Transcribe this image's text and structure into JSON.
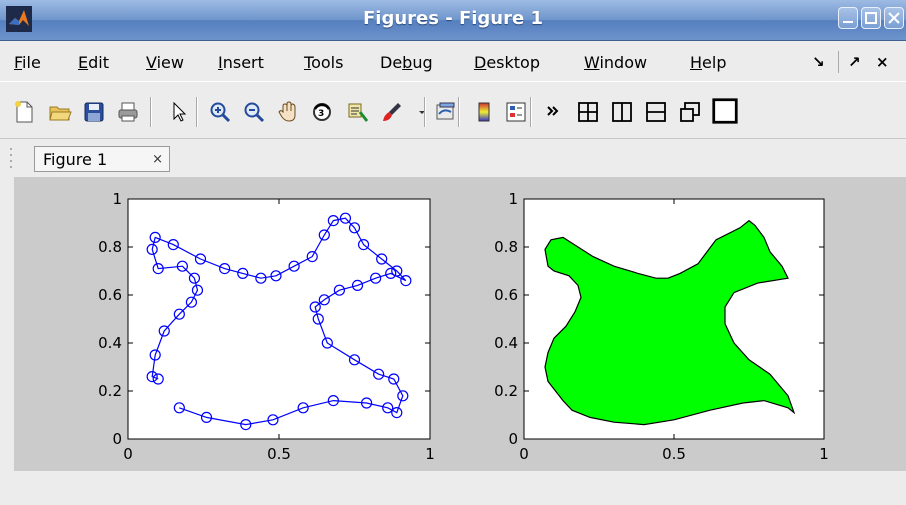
{
  "window": {
    "title": "Figures - Figure 1"
  },
  "menu": {
    "items": [
      {
        "label": "File",
        "u": "F",
        "rest": "ile"
      },
      {
        "label": "Edit",
        "u": "E",
        "rest": "dit"
      },
      {
        "label": "View",
        "u": "V",
        "rest": "iew"
      },
      {
        "label": "Insert",
        "u": "I",
        "rest": "nsert"
      },
      {
        "label": "Tools",
        "u": "T",
        "rest": "ools"
      },
      {
        "label": "Debug",
        "pre": "De",
        "u": "b",
        "rest": "ug"
      },
      {
        "label": "Desktop",
        "u": "D",
        "rest": "esktop"
      },
      {
        "label": "Window",
        "u": "W",
        "rest": "indow"
      },
      {
        "label": "Help",
        "u": "H",
        "rest": "elp"
      }
    ],
    "right_glyphs": [
      "↘",
      "↗",
      "×"
    ]
  },
  "toolbar": {
    "icons": [
      "new-figure-icon",
      "open-file-icon",
      "save-icon",
      "print-icon",
      "pointer-icon",
      "zoom-in-icon",
      "zoom-out-icon",
      "pan-icon",
      "rotate-3d-icon",
      "data-cursor-icon",
      "brush-icon",
      "dropdown-arrow-icon",
      "link-plot-icon",
      "colorbar-icon",
      "legend-icon",
      "overflow-icon",
      "tile-grid-icon",
      "tile-columns-icon",
      "tile-rows-icon",
      "float-icon",
      "maximize-icon"
    ]
  },
  "tab": {
    "label": "Figure 1",
    "close": "×"
  },
  "chart_data": [
    {
      "type": "line",
      "title": "",
      "xlabel": "",
      "ylabel": "",
      "xlim": [
        0,
        1
      ],
      "ylim": [
        0,
        1
      ],
      "xticks": [
        "0",
        "0.5",
        "1"
      ],
      "yticks": [
        "0",
        "0.2",
        "0.4",
        "0.6",
        "0.8",
        "1"
      ],
      "marker": "circle",
      "color": "#0000ff",
      "series": [
        {
          "x": [
            0.17,
            0.26,
            0.39,
            0.48,
            0.58,
            0.68,
            0.79,
            0.86,
            0.89,
            0.91,
            0.88,
            0.83,
            0.75,
            0.66,
            0.63,
            0.62,
            0.65,
            0.7,
            0.76,
            0.82,
            0.87,
            0.92,
            0.89,
            0.84,
            0.78,
            0.75,
            0.72,
            0.68,
            0.65,
            0.61,
            0.55,
            0.49,
            0.44,
            0.38,
            0.32,
            0.24,
            0.15,
            0.09,
            0.08,
            0.1,
            0.18,
            0.22,
            0.23,
            0.21,
            0.17,
            0.12,
            0.09,
            0.08,
            0.1
          ],
          "y": [
            0.13,
            0.09,
            0.06,
            0.08,
            0.13,
            0.16,
            0.15,
            0.13,
            0.11,
            0.18,
            0.25,
            0.27,
            0.33,
            0.4,
            0.5,
            0.55,
            0.58,
            0.62,
            0.64,
            0.67,
            0.69,
            0.66,
            0.7,
            0.75,
            0.81,
            0.88,
            0.92,
            0.91,
            0.85,
            0.76,
            0.72,
            0.68,
            0.67,
            0.69,
            0.71,
            0.75,
            0.81,
            0.84,
            0.79,
            0.71,
            0.72,
            0.67,
            0.62,
            0.57,
            0.52,
            0.45,
            0.35,
            0.26,
            0.25
          ]
        }
      ]
    },
    {
      "type": "area",
      "title": "",
      "xlabel": "",
      "ylabel": "",
      "xlim": [
        0,
        1
      ],
      "ylim": [
        0,
        1
      ],
      "xticks": [
        "0",
        "0.5",
        "1"
      ],
      "yticks": [
        "0",
        "0.2",
        "0.4",
        "0.6",
        "0.8",
        "1"
      ],
      "fill": "#00ff00",
      "edge": "#000000",
      "series": [
        {
          "x": [
            0.13,
            0.16,
            0.22,
            0.3,
            0.4,
            0.5,
            0.62,
            0.73,
            0.8,
            0.88,
            0.9,
            0.88,
            0.82,
            0.75,
            0.7,
            0.67,
            0.67,
            0.7,
            0.78,
            0.88,
            0.86,
            0.82,
            0.8,
            0.77,
            0.75,
            0.72,
            0.64,
            0.58,
            0.52,
            0.48,
            0.44,
            0.38,
            0.3,
            0.23,
            0.18,
            0.13,
            0.09,
            0.07,
            0.08,
            0.1,
            0.15,
            0.18,
            0.19,
            0.17,
            0.14,
            0.1,
            0.08,
            0.07,
            0.08
          ],
          "y": [
            0.16,
            0.12,
            0.09,
            0.07,
            0.06,
            0.08,
            0.12,
            0.15,
            0.16,
            0.13,
            0.11,
            0.18,
            0.27,
            0.33,
            0.4,
            0.48,
            0.55,
            0.61,
            0.65,
            0.67,
            0.72,
            0.78,
            0.84,
            0.89,
            0.91,
            0.88,
            0.83,
            0.73,
            0.69,
            0.67,
            0.67,
            0.69,
            0.72,
            0.76,
            0.8,
            0.84,
            0.83,
            0.79,
            0.72,
            0.7,
            0.68,
            0.64,
            0.59,
            0.53,
            0.47,
            0.42,
            0.36,
            0.3,
            0.24
          ]
        }
      ]
    }
  ]
}
